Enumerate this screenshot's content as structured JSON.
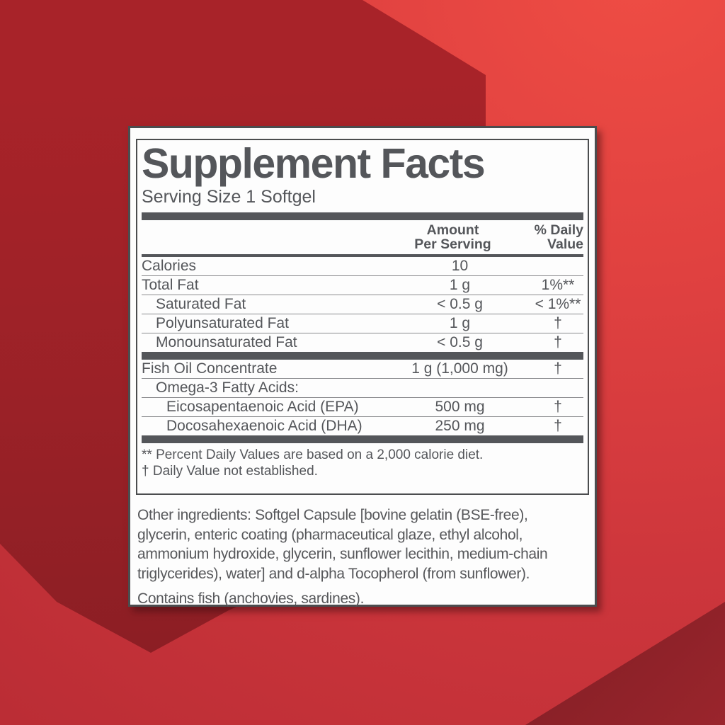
{
  "background": {
    "base_gradient": [
      "#EF4D44",
      "#CD363C",
      "#BB2D35"
    ],
    "dark_polygon_gradient": [
      "#A82329",
      "#871D23"
    ],
    "corner_triangle": "#8E222A",
    "text_gray": "#54565A",
    "card_border": "#4B4D4F"
  },
  "panel": {
    "title": "Supplement Facts",
    "serving_size": "Serving Size 1 Softgel",
    "header": {
      "amount_line1": "Amount",
      "amount_line2": "Per Serving",
      "dv_line1": "% Daily",
      "dv_line2": "Value"
    },
    "rows": [
      {
        "name": "Calories",
        "amount": "10",
        "dv": "",
        "indent": 0,
        "thick_after": false
      },
      {
        "name": "Total Fat",
        "amount": "1 g",
        "dv": "1%**",
        "indent": 0,
        "thick_after": false
      },
      {
        "name": "Saturated Fat",
        "amount": "< 0.5 g",
        "dv": "< 1%**",
        "indent": 1,
        "thick_after": false
      },
      {
        "name": "Polyunsaturated Fat",
        "amount": "1 g",
        "dv": "†",
        "indent": 1,
        "thick_after": false
      },
      {
        "name": "Monounsaturated Fat",
        "amount": "< 0.5 g",
        "dv": "†",
        "indent": 1,
        "thick_after": true
      },
      {
        "name": "Fish Oil Concentrate",
        "amount": "1 g (1,000 mg)",
        "dv": "†",
        "indent": 0,
        "thick_after": false
      },
      {
        "name": "Omega-3 Fatty Acids:",
        "amount": "",
        "dv": "",
        "indent": 1,
        "thick_after": false
      },
      {
        "name": "Eicosapentaenoic Acid (EPA)",
        "amount": "500 mg",
        "dv": "†",
        "indent": 2,
        "thick_after": false
      },
      {
        "name": "Docosahexaenoic Acid (DHA)",
        "amount": "250 mg",
        "dv": "†",
        "indent": 2,
        "thick_after": true
      }
    ],
    "footnotes": [
      "** Percent Daily Values are based on a 2,000 calorie diet.",
      "† Daily Value not established."
    ]
  },
  "other_ingredients": "Other ingredients: Softgel Capsule [bovine gelatin (BSE-free),\nglycerin, enteric coating (pharmaceutical glaze, ethyl alcohol,\nammonium hydroxide, glycerin, sunflower lecithin, medium-chain\ntriglycerides), water] and d-alpha Tocopherol (from sunflower).",
  "contains": "Contains fish (anchovies, sardines)."
}
